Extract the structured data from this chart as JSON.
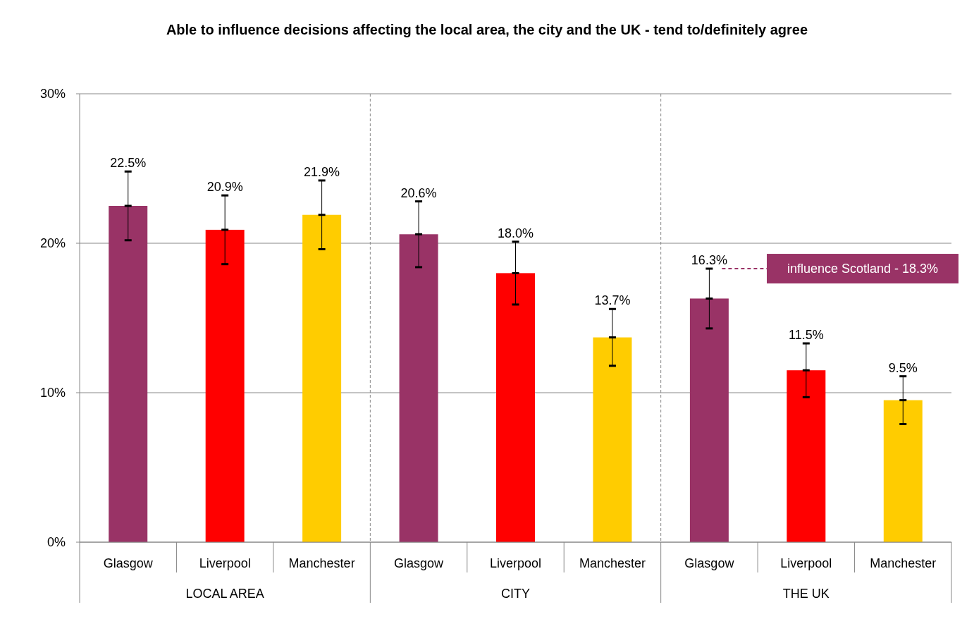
{
  "chart_data": {
    "type": "bar",
    "title": "Able to influence decisions affecting the  local area, the city and the UK - tend to/definitely agree",
    "categories": [
      "Glasgow",
      "Liverpool",
      "Manchester",
      "Glasgow",
      "Liverpool",
      "Manchester",
      "Glasgow",
      "Liverpool",
      "Manchester"
    ],
    "values": [
      22.5,
      20.9,
      21.9,
      20.6,
      18.0,
      13.7,
      16.3,
      11.5,
      9.5
    ],
    "value_labels": [
      "22.5%",
      "20.9%",
      "21.9%",
      "20.6%",
      "18.0%",
      "13.7%",
      "16.3%",
      "11.5%",
      "9.5%"
    ],
    "errors": [
      2.3,
      2.3,
      2.3,
      2.2,
      2.1,
      1.9,
      2.0,
      1.8,
      1.6
    ],
    "colors": [
      "#993366",
      "#ff0000",
      "#ffcc00",
      "#993366",
      "#ff0000",
      "#ffcc00",
      "#993366",
      "#ff0000",
      "#ffcc00"
    ],
    "ylim": [
      0,
      30
    ],
    "yticks": [
      {
        "value": 0,
        "label": "0%"
      },
      {
        "value": 10,
        "label": "10%"
      },
      {
        "value": 20,
        "label": "20%"
      },
      {
        "value": 30,
        "label": "30%"
      }
    ],
    "grid": "y",
    "annotations": [
      "LOCAL AREA",
      "CITY",
      "THE UK",
      "influence Scotland - 18.3%"
    ]
  }
}
